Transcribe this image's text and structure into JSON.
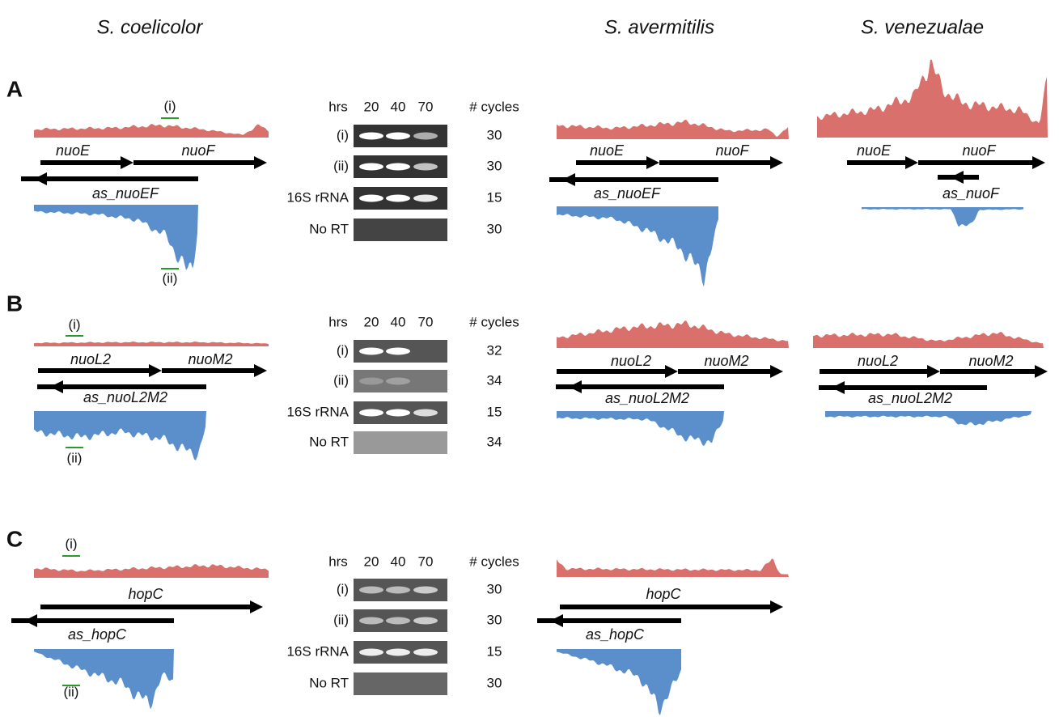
{
  "species": [
    "S. coelicolor",
    "S. avermitilis",
    "S. venezualae"
  ],
  "panels": [
    {
      "label": "A",
      "coelicolor": {
        "probes": [
          "(i)",
          "(ii)"
        ],
        "genes": [
          "nuoE",
          "nuoF"
        ],
        "antisense": "as_nuoEF"
      },
      "gel": {
        "hrs_label": "hrs",
        "times": [
          20,
          40,
          70
        ],
        "cycles_label": "# cycles",
        "rows": [
          {
            "name": "(i)",
            "cycles": 30
          },
          {
            "name": "(ii)",
            "cycles": 30
          },
          {
            "name": "16S rRNA",
            "cycles": 15
          },
          {
            "name": "No RT",
            "cycles": 30
          }
        ]
      },
      "avermitilis": {
        "genes": [
          "nuoE",
          "nuoF"
        ],
        "antisense": "as_nuoEF"
      },
      "venezualae": {
        "genes": [
          "nuoE",
          "nuoF"
        ],
        "antisense": "as_nuoF"
      }
    },
    {
      "label": "B",
      "coelicolor": {
        "probes": [
          "(i)",
          "(ii)"
        ],
        "genes": [
          "nuoL2",
          "nuoM2"
        ],
        "antisense": "as_nuoL2M2"
      },
      "gel": {
        "hrs_label": "hrs",
        "times": [
          20,
          40,
          70
        ],
        "cycles_label": "# cycles",
        "rows": [
          {
            "name": "(i)",
            "cycles": 32
          },
          {
            "name": "(ii)",
            "cycles": 34
          },
          {
            "name": "16S rRNA",
            "cycles": 15
          },
          {
            "name": "No RT",
            "cycles": 34
          }
        ]
      },
      "avermitilis": {
        "genes": [
          "nuoL2",
          "nuoM2"
        ],
        "antisense": "as_nuoL2M2"
      },
      "venezualae": {
        "genes": [
          "nuoL2",
          "nuoM2"
        ],
        "antisense": "as_nuoL2M2"
      }
    },
    {
      "label": "C",
      "coelicolor": {
        "probes": [
          "(i)",
          "(ii)"
        ],
        "genes": [
          "hopC"
        ],
        "antisense": "as_hopC"
      },
      "gel": {
        "hrs_label": "hrs",
        "times": [
          20,
          40,
          70
        ],
        "cycles_label": "# cycles",
        "rows": [
          {
            "name": "(i)",
            "cycles": 30
          },
          {
            "name": "(ii)",
            "cycles": 30
          },
          {
            "name": "16S rRNA",
            "cycles": 15
          },
          {
            "name": "No RT",
            "cycles": 30
          }
        ]
      },
      "avermitilis": {
        "genes": [
          "hopC"
        ],
        "antisense": "as_hopC"
      }
    }
  ]
}
